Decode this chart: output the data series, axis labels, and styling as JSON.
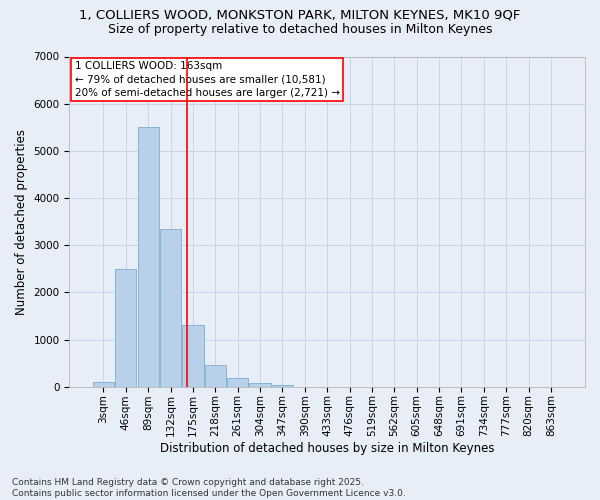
{
  "title_line1": "1, COLLIERS WOOD, MONKSTON PARK, MILTON KEYNES, MK10 9QF",
  "title_line2": "Size of property relative to detached houses in Milton Keynes",
  "xlabel": "Distribution of detached houses by size in Milton Keynes",
  "ylabel": "Number of detached properties",
  "bar_labels": [
    "3sqm",
    "46sqm",
    "89sqm",
    "132sqm",
    "175sqm",
    "218sqm",
    "261sqm",
    "304sqm",
    "347sqm",
    "390sqm",
    "433sqm",
    "476sqm",
    "519sqm",
    "562sqm",
    "605sqm",
    "648sqm",
    "691sqm",
    "734sqm",
    "777sqm",
    "820sqm",
    "863sqm"
  ],
  "bar_values": [
    100,
    2500,
    5500,
    3350,
    1300,
    460,
    175,
    80,
    40,
    0,
    0,
    0,
    0,
    0,
    0,
    0,
    0,
    0,
    0,
    0,
    0
  ],
  "bar_color": "#b8d0ea",
  "bar_edgecolor": "#7aaed0",
  "vline_x_index": 3.72,
  "vline_color": "red",
  "annotation_line1": "1 COLLIERS WOOD: 163sqm",
  "annotation_line2": "← 79% of detached houses are smaller (10,581)",
  "annotation_line3": "20% of semi-detached houses are larger (2,721) →",
  "annotation_box_edgecolor": "red",
  "annotation_box_facecolor": "white",
  "ylim": [
    0,
    7000
  ],
  "yticks": [
    0,
    1000,
    2000,
    3000,
    4000,
    5000,
    6000,
    7000
  ],
  "grid_color": "#c8d4e8",
  "background_color": "#e8eef8",
  "footer_text": "Contains HM Land Registry data © Crown copyright and database right 2025.\nContains public sector information licensed under the Open Government Licence v3.0.",
  "title_fontsize": 9.5,
  "subtitle_fontsize": 9,
  "axis_label_fontsize": 8.5,
  "tick_fontsize": 7.5,
  "annotation_fontsize": 7.5,
  "footer_fontsize": 6.5
}
